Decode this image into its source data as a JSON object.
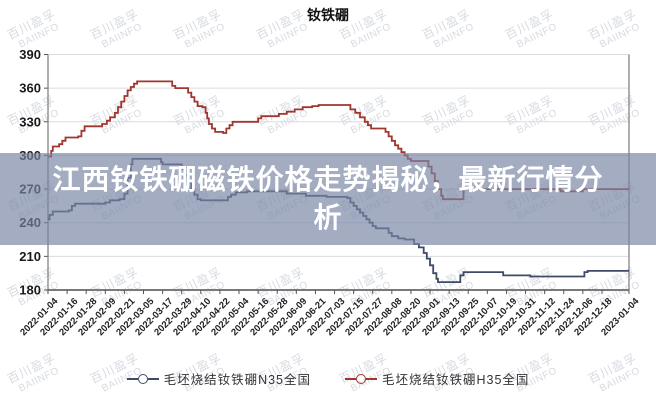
{
  "title": "钕铁硼",
  "banner": {
    "line1": "江西钕铁硼磁铁价格走势揭秘，最新行情分",
    "line2": "析"
  },
  "watermark": {
    "cn": "百川盈孚",
    "en": "BAIINFO"
  },
  "chart_data": {
    "type": "line",
    "title": "钕铁硼",
    "ylim": [
      180,
      390
    ],
    "y_ticks": [
      390,
      360,
      330,
      300,
      270,
      240,
      210,
      180
    ],
    "x_range_days": 365,
    "grid": "horizontal",
    "legend_position": "bottom",
    "x_ticks": [
      {
        "label": "2022-01-04",
        "day": 0
      },
      {
        "label": "2022-01-16",
        "day": 12
      },
      {
        "label": "2022-01-28",
        "day": 24
      },
      {
        "label": "2022-02-09",
        "day": 36
      },
      {
        "label": "2022-02-21",
        "day": 48
      },
      {
        "label": "2022-03-05",
        "day": 60
      },
      {
        "label": "2022-03-17",
        "day": 72
      },
      {
        "label": "2022-03-29",
        "day": 84
      },
      {
        "label": "2022-04-10",
        "day": 96
      },
      {
        "label": "2022-04-22",
        "day": 108
      },
      {
        "label": "2022-05-04",
        "day": 120
      },
      {
        "label": "2022-05-16",
        "day": 132
      },
      {
        "label": "2022-05-28",
        "day": 144
      },
      {
        "label": "2022-06-09",
        "day": 156
      },
      {
        "label": "2022-06-21",
        "day": 168
      },
      {
        "label": "2022-07-03",
        "day": 180
      },
      {
        "label": "2022-07-15",
        "day": 192
      },
      {
        "label": "2022-07-27",
        "day": 204
      },
      {
        "label": "2022-08-08",
        "day": 216
      },
      {
        "label": "2022-08-20",
        "day": 228
      },
      {
        "label": "2022-09-01",
        "day": 240
      },
      {
        "label": "2022-09-13",
        "day": 252
      },
      {
        "label": "2022-09-25",
        "day": 264
      },
      {
        "label": "2022-10-07",
        "day": 276
      },
      {
        "label": "2022-10-19",
        "day": 288
      },
      {
        "label": "2022-10-31",
        "day": 300
      },
      {
        "label": "2022-11-12",
        "day": 312
      },
      {
        "label": "2022-11-24",
        "day": 324
      },
      {
        "label": "2022-12-06",
        "day": 336
      },
      {
        "label": "2022-12-18",
        "day": 348
      },
      {
        "label": "2023-01-04",
        "day": 365
      }
    ],
    "series": [
      {
        "name": "毛坯烧结钕铁硼N35全国",
        "color": "#3d4b66",
        "points": [
          [
            0,
            243
          ],
          [
            1,
            247
          ],
          [
            3,
            250
          ],
          [
            13,
            251
          ],
          [
            15,
            255
          ],
          [
            17,
            257
          ],
          [
            36,
            258
          ],
          [
            39,
            260
          ],
          [
            45,
            261
          ],
          [
            48,
            266
          ],
          [
            50,
            280
          ],
          [
            52,
            292
          ],
          [
            53,
            297
          ],
          [
            69,
            297
          ],
          [
            71,
            294
          ],
          [
            72,
            292
          ],
          [
            82,
            292
          ],
          [
            84,
            288
          ],
          [
            86,
            282
          ],
          [
            88,
            276
          ],
          [
            90,
            270
          ],
          [
            92,
            265
          ],
          [
            94,
            261
          ],
          [
            96,
            260
          ],
          [
            111,
            260
          ],
          [
            113,
            263
          ],
          [
            115,
            265
          ],
          [
            118,
            267
          ],
          [
            125,
            268
          ],
          [
            140,
            268
          ],
          [
            150,
            266
          ],
          [
            162,
            264
          ],
          [
            175,
            263
          ],
          [
            188,
            262
          ],
          [
            190,
            258
          ],
          [
            192,
            255
          ],
          [
            194,
            252
          ],
          [
            196,
            249
          ],
          [
            198,
            246
          ],
          [
            200,
            243
          ],
          [
            202,
            240
          ],
          [
            204,
            237
          ],
          [
            206,
            235
          ],
          [
            212,
            235
          ],
          [
            214,
            231
          ],
          [
            216,
            228
          ],
          [
            220,
            226
          ],
          [
            224,
            225
          ],
          [
            230,
            221
          ],
          [
            233,
            218
          ],
          [
            236,
            213
          ],
          [
            238,
            208
          ],
          [
            240,
            202
          ],
          [
            242,
            195
          ],
          [
            244,
            190
          ],
          [
            245,
            187
          ],
          [
            257,
            187
          ],
          [
            259,
            193
          ],
          [
            261,
            196
          ],
          [
            284,
            196
          ],
          [
            286,
            193
          ],
          [
            301,
            193
          ],
          [
            303,
            192
          ],
          [
            335,
            192
          ],
          [
            337,
            196
          ],
          [
            339,
            197
          ],
          [
            365,
            197
          ]
        ]
      },
      {
        "name": "毛坯烧结钕铁硼H35全国",
        "color": "#a1362f",
        "points": [
          [
            0,
            299
          ],
          [
            2,
            304
          ],
          [
            3,
            308
          ],
          [
            7,
            310
          ],
          [
            9,
            313
          ],
          [
            11,
            316
          ],
          [
            19,
            317
          ],
          [
            21,
            322
          ],
          [
            23,
            326
          ],
          [
            34,
            328
          ],
          [
            37,
            331
          ],
          [
            39,
            334
          ],
          [
            42,
            338
          ],
          [
            44,
            343
          ],
          [
            46,
            348
          ],
          [
            48,
            353
          ],
          [
            50,
            358
          ],
          [
            52,
            361
          ],
          [
            54,
            364
          ],
          [
            56,
            366
          ],
          [
            76,
            366
          ],
          [
            78,
            362
          ],
          [
            80,
            360
          ],
          [
            86,
            360
          ],
          [
            88,
            356
          ],
          [
            90,
            352
          ],
          [
            92,
            348
          ],
          [
            94,
            344
          ],
          [
            97,
            343
          ],
          [
            99,
            338
          ],
          [
            100,
            333
          ],
          [
            101,
            328
          ],
          [
            103,
            324
          ],
          [
            105,
            321
          ],
          [
            110,
            320
          ],
          [
            112,
            324
          ],
          [
            114,
            327
          ],
          [
            116,
            330
          ],
          [
            130,
            330
          ],
          [
            132,
            333
          ],
          [
            134,
            335
          ],
          [
            143,
            335
          ],
          [
            145,
            337
          ],
          [
            150,
            339
          ],
          [
            155,
            341
          ],
          [
            160,
            343
          ],
          [
            166,
            344
          ],
          [
            170,
            345
          ],
          [
            188,
            345
          ],
          [
            190,
            341
          ],
          [
            193,
            338
          ],
          [
            196,
            334
          ],
          [
            199,
            330
          ],
          [
            201,
            327
          ],
          [
            203,
            324
          ],
          [
            210,
            324
          ],
          [
            212,
            321
          ],
          [
            214,
            317
          ],
          [
            216,
            313
          ],
          [
            218,
            309
          ],
          [
            220,
            306
          ],
          [
            222,
            303
          ],
          [
            224,
            300
          ],
          [
            226,
            297
          ],
          [
            228,
            295
          ],
          [
            237,
            295
          ],
          [
            239,
            290
          ],
          [
            241,
            284
          ],
          [
            243,
            277
          ],
          [
            245,
            270
          ],
          [
            247,
            264
          ],
          [
            248,
            261
          ],
          [
            259,
            261
          ],
          [
            261,
            270
          ],
          [
            320,
            270
          ],
          [
            322,
            268
          ],
          [
            334,
            268
          ],
          [
            336,
            270
          ],
          [
            365,
            270
          ]
        ]
      }
    ],
    "colors": {
      "grid": "#dcdcdc",
      "axis": "#7a7a7a",
      "tick": "#555555",
      "y_label": "#1a1a1a",
      "x_label": "#222222"
    }
  }
}
